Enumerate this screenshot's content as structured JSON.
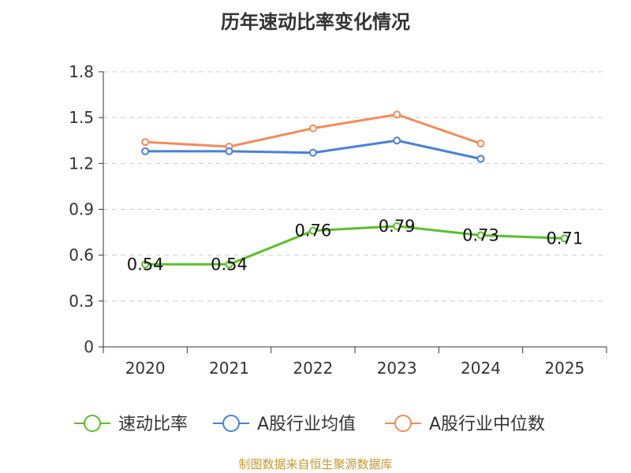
{
  "chart_data": {
    "type": "line",
    "title": "历年速动比率变化情况",
    "categories": [
      "2020",
      "2021",
      "2022",
      "2023",
      "2024",
      "2025"
    ],
    "ylim": [
      0,
      1.8
    ],
    "yticks": [
      "0",
      "0.3",
      "0.6",
      "0.9",
      "1.2",
      "1.5",
      "1.8"
    ],
    "grid": true,
    "legend_position": "bottom",
    "series": [
      {
        "name": "速动比率",
        "color": "#5cbf2a",
        "values": [
          0.54,
          0.54,
          0.76,
          0.79,
          0.73,
          0.71
        ],
        "labels": [
          "0.54",
          "0.54",
          "0.76",
          "0.79",
          "0.73",
          "0.71"
        ]
      },
      {
        "name": "A股行业均值",
        "color": "#4a80d8",
        "values": [
          1.28,
          1.28,
          1.27,
          1.35,
          1.23,
          null
        ]
      },
      {
        "name": "A股行业中位数",
        "color": "#f38b5a",
        "values": [
          1.34,
          1.31,
          1.43,
          1.52,
          1.33,
          null
        ]
      }
    ]
  },
  "footer": {
    "source": "制图数据来自恒生聚源数据库"
  }
}
